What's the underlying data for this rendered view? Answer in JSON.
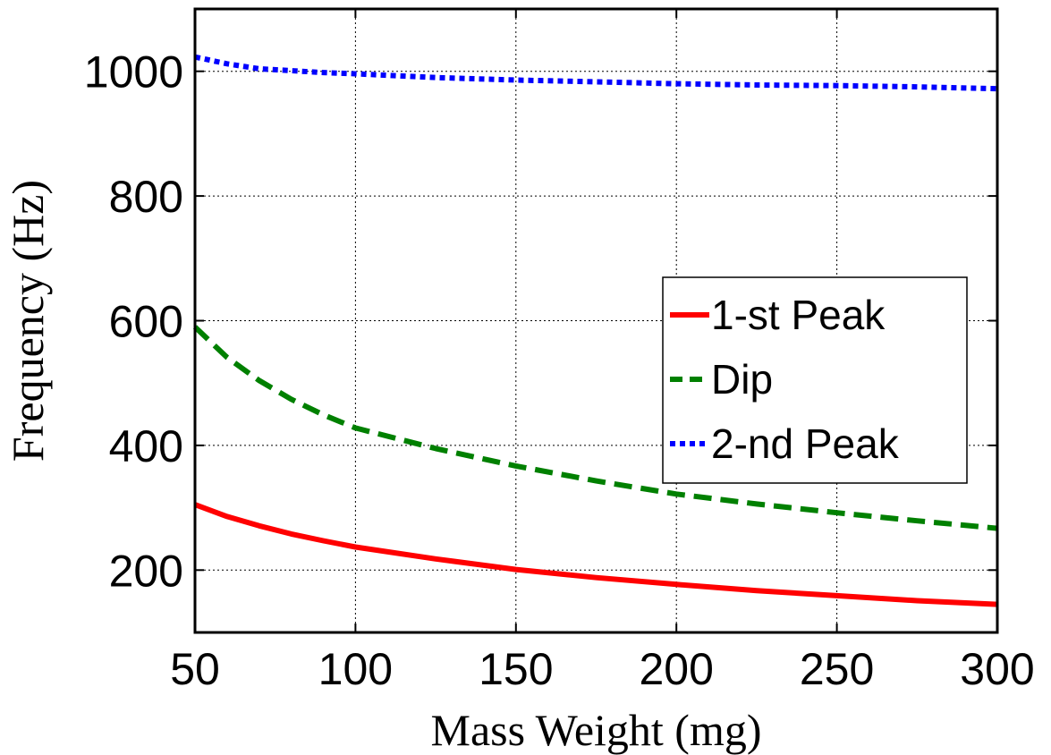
{
  "chart_data": {
    "type": "line",
    "xlabel": "Mass Weight (mg)",
    "ylabel": "Frequency (Hz)",
    "xlim": [
      50,
      300
    ],
    "ylim": [
      100,
      1100
    ],
    "xticks": [
      "50",
      "100",
      "150",
      "200",
      "250",
      "300"
    ],
    "yticks": [
      "200",
      "400",
      "600",
      "800",
      "1000"
    ],
    "grid": true,
    "legend_position": "right",
    "x": [
      50,
      60,
      70,
      80,
      90,
      100,
      125,
      150,
      175,
      200,
      225,
      250,
      275,
      300
    ],
    "series": [
      {
        "name": "1-st Peak",
        "color": "#ff0000",
        "style": "solid",
        "values": [
          305,
          286,
          271,
          258,
          247,
          237,
          218,
          201,
          188,
          177,
          167,
          159,
          151,
          145
        ]
      },
      {
        "name": "Dip",
        "color": "#008000",
        "style": "dashed",
        "values": [
          590,
          541,
          504,
          474,
          449,
          428,
          395,
          367,
          343,
          322,
          306,
          292,
          279,
          267
        ]
      },
      {
        "name": "2-nd Peak",
        "color": "#0000ff",
        "style": "dotted",
        "values": [
          1023,
          1012,
          1004,
          1001,
          998,
          996,
          990,
          986,
          983,
          980,
          978,
          977,
          975,
          972
        ]
      }
    ]
  }
}
